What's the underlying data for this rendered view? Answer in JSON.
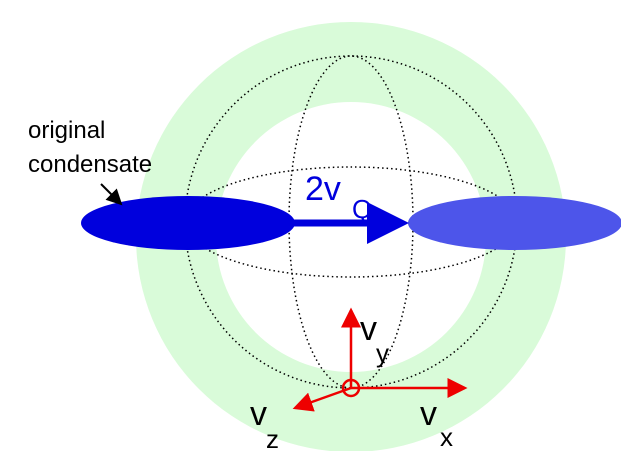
{
  "annotation": {
    "line1": "original",
    "line2": "condensate"
  },
  "velocity": {
    "main": "2v",
    "subscript": "Q"
  },
  "axes": {
    "y": {
      "symbol": "v",
      "subscript": "y"
    },
    "z": {
      "symbol": "v",
      "subscript": "z"
    },
    "x": {
      "symbol": "v",
      "subscript": "x"
    }
  }
}
